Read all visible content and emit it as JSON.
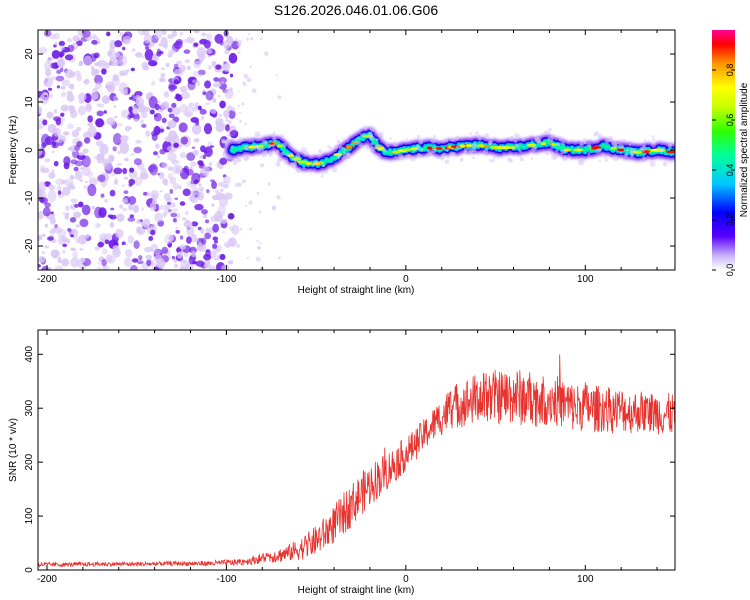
{
  "figure": {
    "title": "S126.2026.046.01.06.G06"
  },
  "colors": {
    "snr_line": "#e8322e",
    "axis": "#000000",
    "noise_dark": "#6e1ee6",
    "noise_light": "#d9c6f5"
  },
  "chart_data": [
    {
      "type": "heatmap",
      "name": "spectrogram",
      "xlabel": "Height of straight line (km)",
      "ylabel": "Frequency (Hz)",
      "xlim": [
        -205,
        150
      ],
      "ylim": [
        -25,
        25
      ],
      "xticks": [
        -200,
        -100,
        0,
        100
      ],
      "xtick_labels": [
        "-200",
        "-100",
        "0",
        "100"
      ],
      "yticks": [
        -20,
        -10,
        0,
        10,
        20
      ],
      "ytick_labels": [
        "-20",
        "-10",
        "0",
        "10",
        "20"
      ],
      "noise_region_x": [
        -205,
        -95
      ],
      "ridge": {
        "x": [
          -97,
          -90,
          -80,
          -72,
          -65,
          -58,
          -52,
          -45,
          -38,
          -30,
          -25,
          -20,
          -16,
          -12,
          -6,
          0,
          10,
          20,
          30,
          40,
          50,
          60,
          70,
          80,
          90,
          100,
          110,
          120,
          130,
          140,
          150
        ],
        "freq_hz": [
          0,
          0.5,
          0.8,
          1.5,
          -1,
          -2.5,
          -3,
          -2.5,
          -1,
          1,
          2.5,
          3,
          1,
          -0.5,
          -0.5,
          0,
          0.5,
          0.3,
          0.8,
          1,
          0.5,
          0.5,
          1,
          1.5,
          0,
          0,
          0.8,
          0,
          -0.5,
          0,
          -0.5
        ]
      },
      "colorbar": {
        "label": "Normalized spectral amplitude",
        "ticks": [
          0.0,
          0.2,
          0.4,
          0.6,
          0.8
        ],
        "tick_labels": [
          "0.0",
          "0.2",
          "0.4",
          "0.6",
          "0.8"
        ],
        "range": [
          0,
          0.96
        ]
      }
    },
    {
      "type": "line",
      "name": "snr",
      "xlabel": "Height of straight line (km)",
      "ylabel": "SNR (10 * v/v)",
      "xlim": [
        -205,
        150
      ],
      "ylim": [
        0,
        445
      ],
      "xticks": [
        -200,
        -100,
        0,
        100
      ],
      "xtick_labels": [
        "-200",
        "-100",
        "0",
        "100"
      ],
      "yticks": [
        0,
        100,
        200,
        300,
        400
      ],
      "ytick_labels": [
        "0",
        "100",
        "200",
        "300",
        "400"
      ],
      "x": [
        -205,
        -190,
        -170,
        -150,
        -130,
        -110,
        -95,
        -85,
        -80,
        -75,
        -70,
        -65,
        -60,
        -55,
        -50,
        -45,
        -40,
        -35,
        -30,
        -25,
        -20,
        -15,
        -10,
        -5,
        0,
        5,
        10,
        15,
        20,
        25,
        30,
        35,
        40,
        45,
        50,
        55,
        60,
        65,
        70,
        75,
        80,
        85,
        90,
        95,
        100,
        105,
        110,
        115,
        120,
        125,
        130,
        135,
        140,
        145,
        150
      ],
      "mean": [
        10,
        10,
        11,
        11,
        12,
        12,
        14,
        18,
        22,
        25,
        28,
        32,
        38,
        45,
        55,
        68,
        85,
        102,
        122,
        140,
        158,
        172,
        185,
        200,
        215,
        232,
        250,
        268,
        285,
        300,
        308,
        312,
        318,
        320,
        322,
        320,
        325,
        318,
        320,
        312,
        318,
        312,
        306,
        300,
        305,
        298,
        300,
        295,
        298,
        292,
        295,
        290,
        292,
        288,
        290
      ],
      "spread": [
        4,
        4,
        4,
        4,
        4,
        5,
        6,
        8,
        10,
        12,
        14,
        16,
        20,
        24,
        28,
        32,
        36,
        40,
        40,
        40,
        40,
        38,
        36,
        34,
        32,
        30,
        30,
        32,
        36,
        40,
        44,
        46,
        48,
        50,
        50,
        52,
        55,
        52,
        50,
        50,
        48,
        48,
        48,
        46,
        46,
        44,
        44,
        42,
        42,
        40,
        40,
        40,
        40,
        40,
        40
      ]
    }
  ]
}
